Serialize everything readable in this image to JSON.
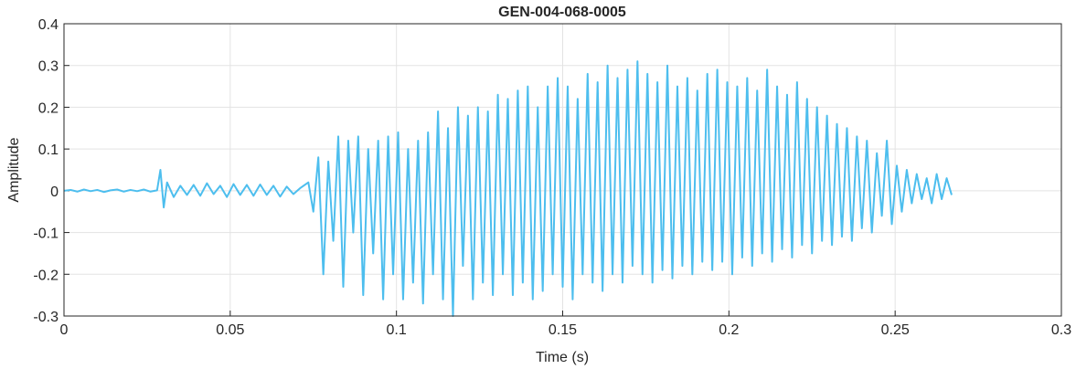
{
  "chart_data": {
    "type": "line",
    "title": "GEN-004-068-0005",
    "xlabel": "Time (s)",
    "ylabel": "Amplitude",
    "color": "#4dbeee",
    "grid": true,
    "xlim": [
      0,
      0.3
    ],
    "xticks": [
      0,
      0.05,
      0.1,
      0.15,
      0.2,
      0.25,
      0.3
    ],
    "ylim": [
      -0.3,
      0.4
    ],
    "yticks": [
      -0.3,
      -0.2,
      -0.1,
      0,
      0.1,
      0.2,
      0.3,
      0.4
    ],
    "x": [
      0,
      0.002,
      0.004,
      0.006,
      0.008,
      0.01,
      0.012,
      0.014,
      0.016,
      0.018,
      0.02,
      0.022,
      0.024,
      0.026,
      0.028,
      0.029,
      0.03,
      0.031,
      0.033,
      0.035,
      0.037,
      0.039,
      0.041,
      0.043,
      0.045,
      0.047,
      0.049,
      0.051,
      0.053,
      0.055,
      0.057,
      0.059,
      0.061,
      0.063,
      0.065,
      0.067,
      0.069,
      0.071,
      0.0735,
      0.075,
      0.0765,
      0.078,
      0.0795,
      0.081,
      0.0825,
      0.084,
      0.0855,
      0.087,
      0.0885,
      0.09,
      0.0915,
      0.093,
      0.0945,
      0.096,
      0.0975,
      0.099,
      0.1005,
      0.102,
      0.1035,
      0.105,
      0.1065,
      0.108,
      0.1095,
      0.111,
      0.1125,
      0.114,
      0.1155,
      0.117,
      0.1185,
      0.12,
      0.1215,
      0.123,
      0.1245,
      0.126,
      0.1275,
      0.129,
      0.1305,
      0.132,
      0.1335,
      0.135,
      0.1365,
      0.138,
      0.1395,
      0.141,
      0.1425,
      0.144,
      0.1455,
      0.147,
      0.1485,
      0.15,
      0.1515,
      0.153,
      0.1545,
      0.156,
      0.1575,
      0.159,
      0.1605,
      0.162,
      0.1635,
      0.165,
      0.1665,
      0.168,
      0.1695,
      0.171,
      0.1725,
      0.174,
      0.1755,
      0.177,
      0.1785,
      0.18,
      0.1815,
      0.183,
      0.1845,
      0.186,
      0.1875,
      0.189,
      0.1905,
      0.192,
      0.1935,
      0.195,
      0.1965,
      0.198,
      0.1995,
      0.201,
      0.2025,
      0.204,
      0.2055,
      0.207,
      0.2085,
      0.21,
      0.2115,
      0.213,
      0.2145,
      0.216,
      0.2175,
      0.219,
      0.2205,
      0.222,
      0.2235,
      0.225,
      0.2265,
      0.228,
      0.2295,
      0.231,
      0.2325,
      0.234,
      0.2355,
      0.237,
      0.2385,
      0.24,
      0.2415,
      0.243,
      0.2445,
      0.246,
      0.2475,
      0.249,
      0.2505,
      0.252,
      0.2535,
      0.255,
      0.2565,
      0.258,
      0.2595,
      0.261,
      0.2625,
      0.264,
      0.2655,
      0.267
    ],
    "values": [
      0,
      0.002,
      -0.002,
      0.003,
      -0.001,
      0.002,
      -0.003,
      0.001,
      0.003,
      -0.002,
      0.002,
      -0.001,
      0.003,
      -0.002,
      0.001,
      0.05,
      -0.04,
      0.02,
      -0.015,
      0.012,
      -0.01,
      0.014,
      -0.012,
      0.018,
      -0.008,
      0.012,
      -0.015,
      0.016,
      -0.01,
      0.014,
      -0.012,
      0.015,
      -0.01,
      0.012,
      -0.014,
      0.01,
      -0.008,
      0.006,
      0.02,
      -0.05,
      0.08,
      -0.2,
      0.07,
      -0.12,
      0.13,
      -0.23,
      0.12,
      -0.1,
      0.13,
      -0.25,
      0.1,
      -0.15,
      0.12,
      -0.26,
      0.13,
      -0.2,
      0.14,
      -0.26,
      0.1,
      -0.22,
      0.12,
      -0.27,
      0.14,
      -0.2,
      0.19,
      -0.26,
      0.15,
      -0.3,
      0.2,
      -0.18,
      0.18,
      -0.26,
      0.2,
      -0.22,
      0.19,
      -0.25,
      0.23,
      -0.2,
      0.22,
      -0.25,
      0.24,
      -0.22,
      0.25,
      -0.26,
      0.2,
      -0.24,
      0.25,
      -0.2,
      0.27,
      -0.23,
      0.25,
      -0.26,
      0.22,
      -0.2,
      0.28,
      -0.22,
      0.26,
      -0.24,
      0.3,
      -0.2,
      0.27,
      -0.22,
      0.29,
      -0.18,
      0.31,
      -0.2,
      0.28,
      -0.22,
      0.26,
      -0.19,
      0.3,
      -0.21,
      0.25,
      -0.18,
      0.27,
      -0.2,
      0.24,
      -0.17,
      0.28,
      -0.19,
      0.29,
      -0.17,
      0.26,
      -0.2,
      0.25,
      -0.16,
      0.27,
      -0.18,
      0.24,
      -0.15,
      0.29,
      -0.17,
      0.25,
      -0.14,
      0.23,
      -0.16,
      0.26,
      -0.13,
      0.22,
      -0.15,
      0.2,
      -0.12,
      0.18,
      -0.13,
      0.16,
      -0.11,
      0.15,
      -0.12,
      0.13,
      -0.09,
      0.12,
      -0.1,
      0.09,
      -0.06,
      0.12,
      -0.08,
      0.06,
      -0.05,
      0.05,
      -0.03,
      0.04,
      -0.02,
      0.03,
      -0.03,
      0.04,
      -0.02,
      0.03,
      -0.01
    ]
  }
}
